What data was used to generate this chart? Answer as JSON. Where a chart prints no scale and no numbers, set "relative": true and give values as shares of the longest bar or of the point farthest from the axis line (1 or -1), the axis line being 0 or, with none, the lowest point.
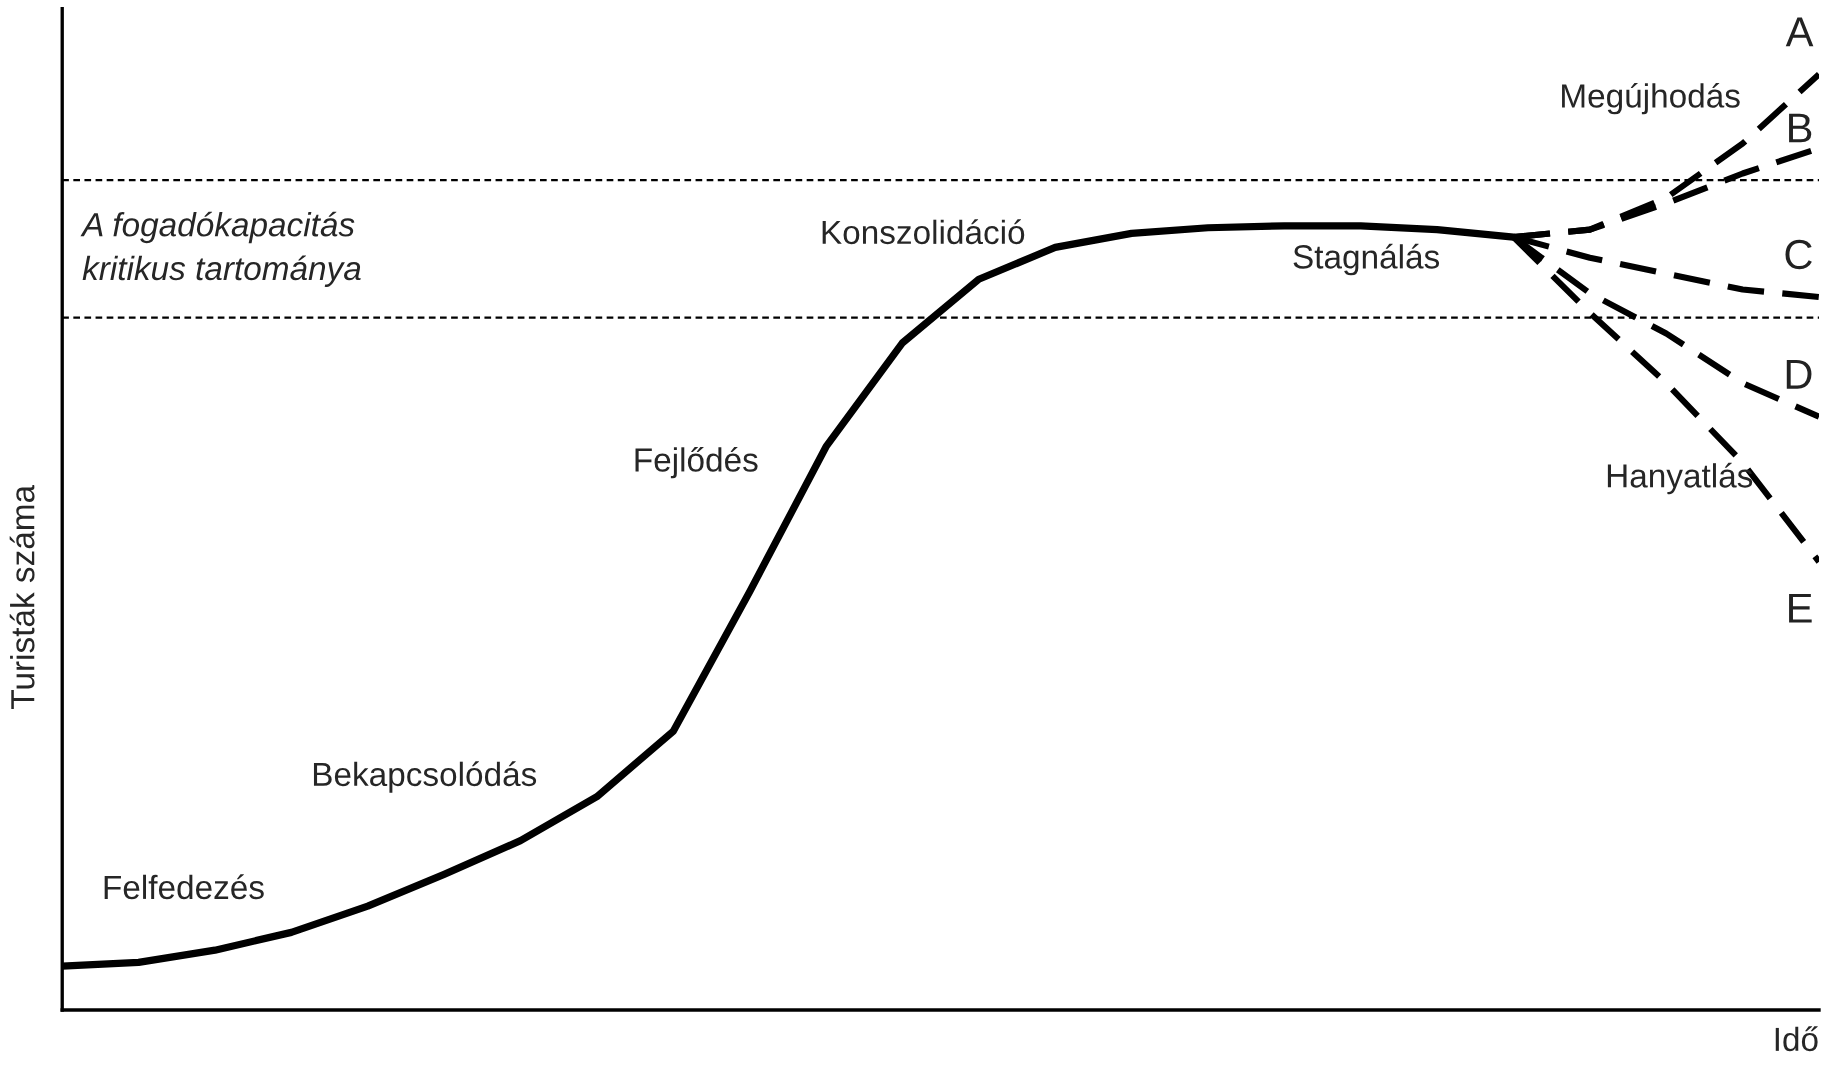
{
  "chart_data": {
    "type": "line",
    "relative": true,
    "xlabel": "Idő",
    "ylabel": "Turisták száma",
    "categories": [
      null,
      null,
      null,
      null,
      null,
      null,
      null,
      null,
      null,
      null,
      null,
      null,
      null,
      null,
      null,
      null,
      null,
      null,
      null,
      null,
      null,
      null,
      null,
      null
    ],
    "series": [
      {
        "color": "#000000",
        "line_style": "solid",
        "values": [
          0.047,
          0.051,
          0.064,
          0.083,
          0.111,
          0.145,
          0.181,
          0.228,
          0.298,
          0.447,
          0.602,
          0.713,
          0.781,
          0.815,
          0.83,
          0.836,
          0.838,
          0.838,
          0.834,
          0.826,
          null,
          null,
          null,
          null
        ]
      },
      {
        "name": "A",
        "color": "#000000",
        "line_style": "dashed",
        "values": [
          null,
          null,
          null,
          null,
          null,
          null,
          null,
          null,
          null,
          null,
          null,
          null,
          null,
          null,
          null,
          null,
          null,
          null,
          null,
          0.826,
          0.834,
          0.868,
          0.926,
          1.0
        ]
      },
      {
        "name": "B",
        "color": "#000000",
        "line_style": "dashed",
        "values": [
          null,
          null,
          null,
          null,
          null,
          null,
          null,
          null,
          null,
          null,
          null,
          null,
          null,
          null,
          null,
          null,
          null,
          null,
          null,
          0.826,
          0.834,
          0.862,
          0.894,
          0.921
        ]
      },
      {
        "name": "C",
        "color": "#000000",
        "line_style": "dashed",
        "values": [
          null,
          null,
          null,
          null,
          null,
          null,
          null,
          null,
          null,
          null,
          null,
          null,
          null,
          null,
          null,
          null,
          null,
          null,
          null,
          0.826,
          0.804,
          0.787,
          0.77,
          0.762
        ]
      },
      {
        "name": "D",
        "color": "#000000",
        "line_style": "dashed",
        "values": [
          null,
          null,
          null,
          null,
          null,
          null,
          null,
          null,
          null,
          null,
          null,
          null,
          null,
          null,
          null,
          null,
          null,
          null,
          null,
          0.826,
          0.766,
          0.723,
          0.67,
          0.634
        ]
      },
      {
        "name": "E",
        "color": "#000000",
        "line_style": "dashed",
        "values": [
          null,
          null,
          null,
          null,
          null,
          null,
          null,
          null,
          null,
          null,
          null,
          null,
          null,
          null,
          null,
          null,
          null,
          null,
          null,
          0.826,
          0.745,
          0.67,
          0.585,
          0.479
        ]
      }
    ],
    "ref_lines": [
      {
        "axis": "y",
        "value": 0.887,
        "line_style": "dashed"
      },
      {
        "axis": "y",
        "value": 0.74,
        "line_style": "dashed"
      }
    ],
    "annotations": [
      "A fogadókapacitás\nkritikus tartománya",
      "Felfedezés",
      "Bekapcsolódás",
      "Fejlődés",
      "Konszolidáció",
      "Stagnálás",
      "Megújhodás",
      "Hanyatlás"
    ],
    "legend": false
  }
}
